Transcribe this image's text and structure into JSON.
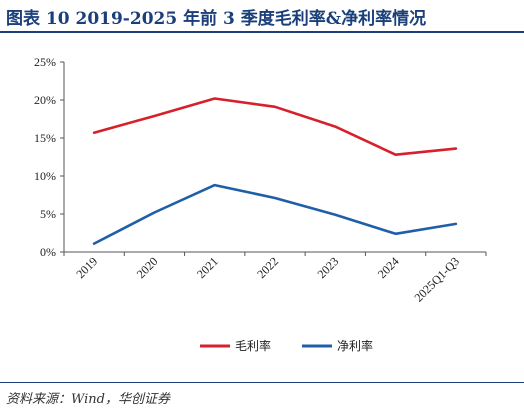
{
  "header": {
    "title": "图表 10    2019-2025 年前 3 季度毛利率&净利率情况"
  },
  "footer": {
    "source": "资料来源：Wind，华创证券"
  },
  "chart_data": {
    "type": "line",
    "title": "",
    "xlabel": "",
    "ylabel": "",
    "categories": [
      "2019",
      "2020",
      "2021",
      "2022",
      "2023",
      "2024",
      "2025Q1-Q3"
    ],
    "y_ticks": [
      "0%",
      "5%",
      "10%",
      "15%",
      "20%",
      "25%"
    ],
    "ylim": [
      0,
      25
    ],
    "grid": false,
    "legend_position": "bottom",
    "series": [
      {
        "name": "毛利率",
        "color": "#d7202b",
        "values": [
          15.7,
          17.9,
          20.2,
          19.1,
          16.5,
          12.8,
          13.6
        ]
      },
      {
        "name": "净利率",
        "color": "#1f5fa8",
        "values": [
          1.1,
          5.2,
          8.8,
          7.1,
          4.9,
          2.4,
          3.7
        ]
      }
    ]
  }
}
